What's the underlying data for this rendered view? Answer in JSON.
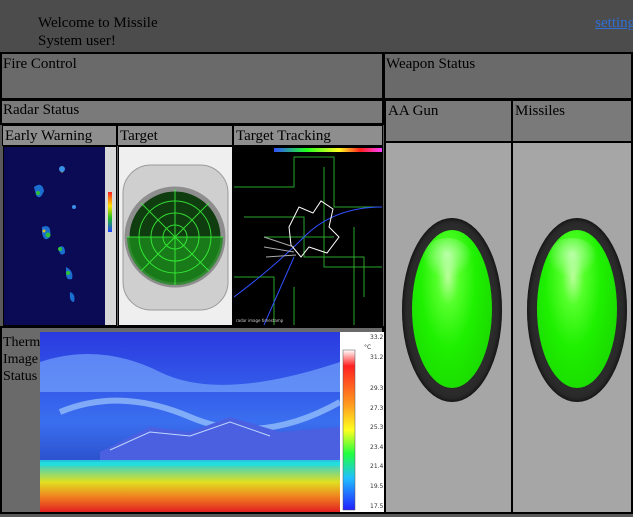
{
  "header": {
    "welcome": "Welcome to Missile System user!",
    "settings_link": "settings"
  },
  "fire_control": {
    "title": "Fire Control"
  },
  "weapon_status": {
    "title": "Weapon Status",
    "columns": [
      "AA Gun",
      "Missiles"
    ]
  },
  "radar_status": {
    "title": "Radar Status",
    "columns": [
      "Early Warning",
      "Target",
      "Target Tracking"
    ]
  },
  "thermal": {
    "label": "Thermal Image Status",
    "scale_ticks": [
      "33.2",
      "31.2",
      "29.3",
      "27.3",
      "25.3",
      "23.4",
      "21.4",
      "19.5",
      "17.5"
    ],
    "unit": "°C"
  },
  "colors": {
    "indicator": "#1ef000",
    "link": "#2f6fd6"
  }
}
